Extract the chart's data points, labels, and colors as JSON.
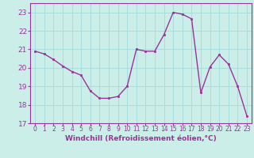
{
  "x": [
    0,
    1,
    2,
    3,
    4,
    5,
    6,
    7,
    8,
    9,
    10,
    11,
    12,
    13,
    14,
    15,
    16,
    17,
    18,
    19,
    20,
    21,
    22,
    23
  ],
  "y": [
    20.9,
    20.75,
    20.45,
    20.1,
    19.8,
    19.6,
    18.75,
    18.35,
    18.35,
    18.45,
    19.0,
    21.0,
    20.9,
    20.9,
    21.8,
    23.0,
    22.9,
    22.65,
    18.65,
    20.05,
    20.7,
    20.2,
    19.0,
    17.4
  ],
  "line_color": "#993399",
  "marker": "s",
  "markersize": 2,
  "linewidth": 1.0,
  "xlim": [
    -0.5,
    23.5
  ],
  "ylim": [
    17,
    23.5
  ],
  "yticks": [
    17,
    18,
    19,
    20,
    21,
    22,
    23
  ],
  "xticks": [
    0,
    1,
    2,
    3,
    4,
    5,
    6,
    7,
    8,
    9,
    10,
    11,
    12,
    13,
    14,
    15,
    16,
    17,
    18,
    19,
    20,
    21,
    22,
    23
  ],
  "xlabel": "Windchill (Refroidissement éolien,°C)",
  "bg_color": "#cceee8",
  "grid_color": "#aadddd",
  "tick_color": "#993399",
  "label_color": "#993399",
  "xlabel_fontsize": 6.5,
  "ytick_fontsize": 6.5,
  "xtick_fontsize": 5.5,
  "spine_color": "#993399"
}
